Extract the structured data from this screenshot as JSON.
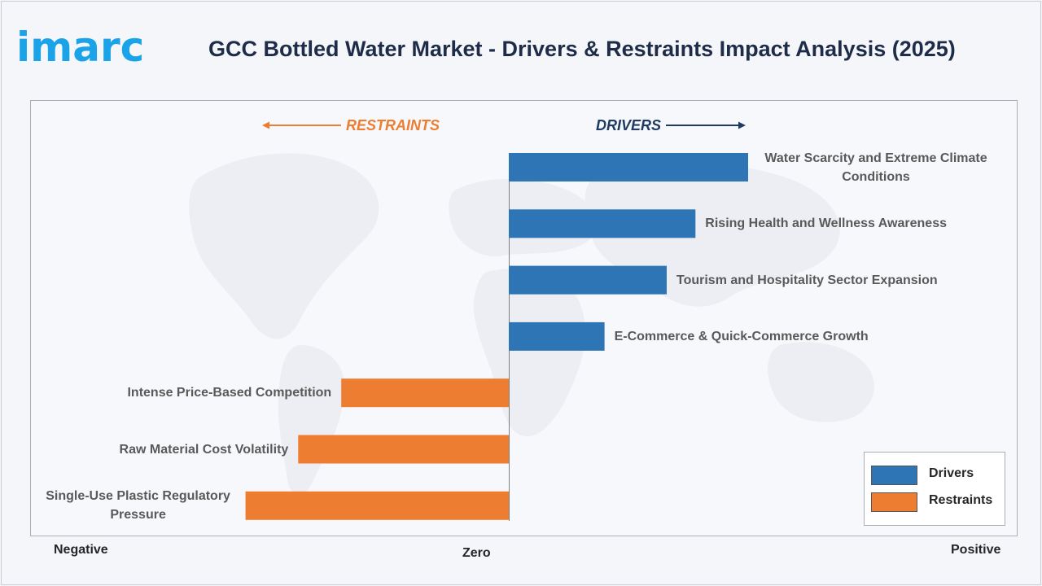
{
  "header": {
    "logo_text": "imarc",
    "title": "GCC Bottled Water Market - Drivers & Restraints Impact Analysis (2025)"
  },
  "chart_data": {
    "type": "bar",
    "orientation": "horizontal",
    "title": "GCC Bottled Water Market - Drivers & Restraints Impact Analysis (2025)",
    "direction_labels": {
      "restraints": "RESTRAINTS",
      "drivers": "DRIVERS"
    },
    "axis_labels": {
      "negative": "Negative",
      "zero": "Zero",
      "positive": "Positive"
    },
    "xlim": [
      -1,
      1
    ],
    "legend_placement": "bottom-right",
    "grid": false,
    "colors": {
      "drivers": "#2e75b6",
      "restraints": "#ed7d31"
    },
    "legend": [
      {
        "name": "Drivers",
        "color": "#2e75b6"
      },
      {
        "name": "Restraints",
        "color": "#ed7d31"
      }
    ],
    "categories": [
      "Water Scarcity and Extreme Climate Conditions",
      "Rising Health and Wellness Awareness",
      "Tourism and Hospitality Sector Expansion",
      "E-Commerce & Quick-Commerce Growth",
      "Intense Price-Based Competition",
      "Raw Material Cost Volatility",
      "Single-Use Plastic Regulatory Pressure"
    ],
    "series": [
      {
        "name": "Drivers",
        "values": [
          0.5,
          0.39,
          0.33,
          0.2,
          null,
          null,
          null
        ]
      },
      {
        "name": "Restraints",
        "values": [
          null,
          null,
          null,
          null,
          -0.35,
          -0.44,
          -0.55
        ]
      }
    ]
  }
}
